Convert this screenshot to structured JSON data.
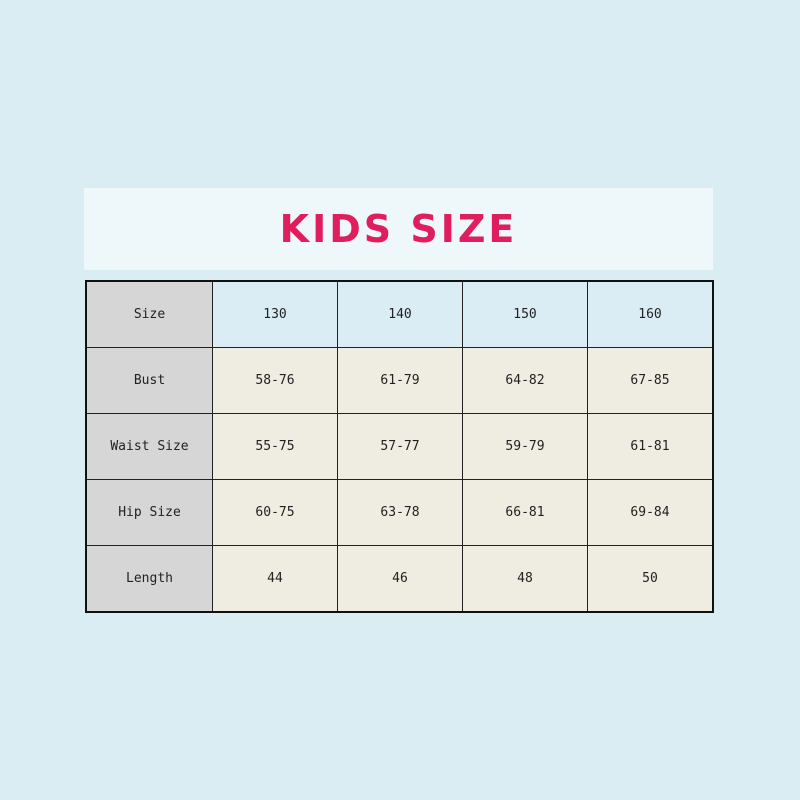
{
  "title": "KIDS SIZE",
  "table": {
    "rows": [
      {
        "label": "Size",
        "values": [
          "130",
          "140",
          "150",
          "160"
        ]
      },
      {
        "label": "Bust",
        "values": [
          "58-76",
          "61-79",
          "64-82",
          "67-85"
        ]
      },
      {
        "label": "Waist Size",
        "values": [
          "55-75",
          "57-77",
          "59-79",
          "61-81"
        ]
      },
      {
        "label": "Hip Size",
        "values": [
          "60-75",
          "63-78",
          "66-81",
          "69-84"
        ]
      },
      {
        "label": "Length",
        "values": [
          "44",
          "46",
          "48",
          "50"
        ]
      }
    ]
  },
  "colors": {
    "background": "#daedf3",
    "title": "#e01e5e",
    "header_cells": "#daedf4",
    "body_cells": "#efece2",
    "label_cells": "#d6d6d6"
  }
}
